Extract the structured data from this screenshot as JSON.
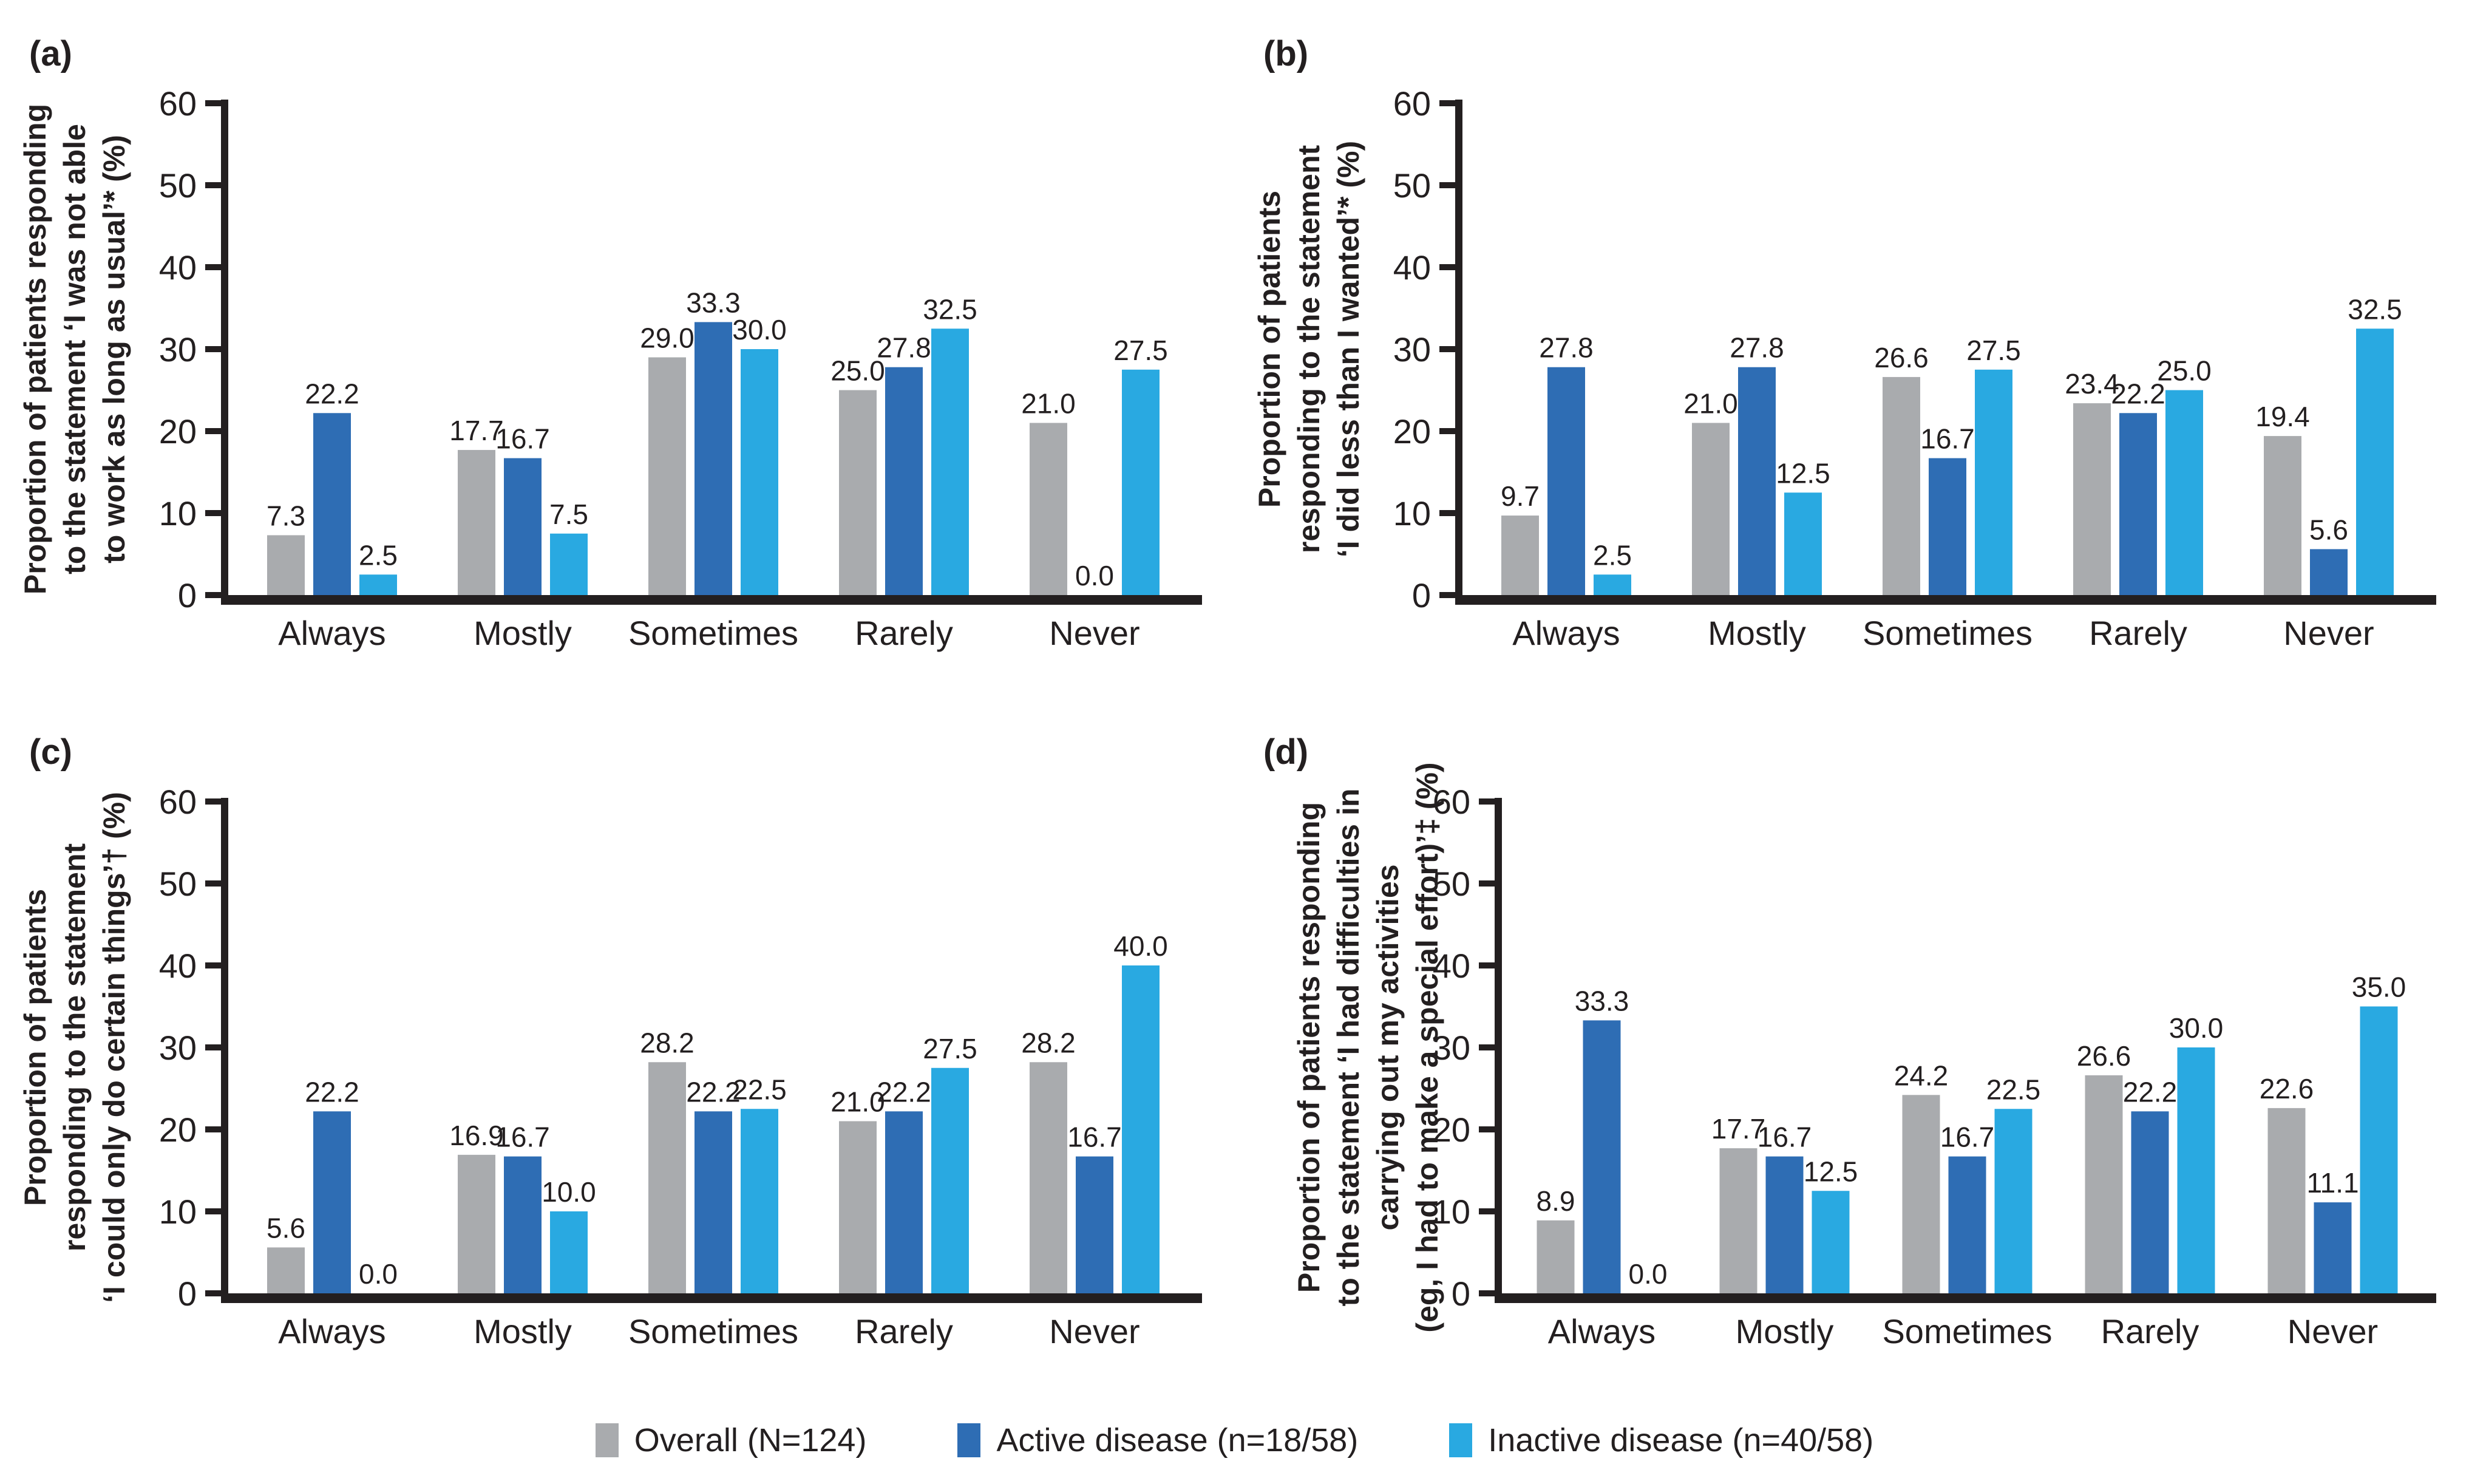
{
  "colors": {
    "ink": "#231f20",
    "background": "#ffffff"
  },
  "legend": [
    {
      "label": "Overall (N=124)",
      "color": "#a9abae"
    },
    {
      "label": "Active disease (n=18/58)",
      "color": "#2e6db4"
    },
    {
      "label": "Inactive disease (n=40/58)",
      "color": "#29a9e1"
    }
  ],
  "chart_data": [
    {
      "type": "bar",
      "panel_label": "(a)",
      "ylabel": "Proportion of patients responding to the statement ‘I was not able to work as long as usual’* (%)",
      "ylabel_lines": [
        "Proportion of patients responding",
        "to the statement ‘I was not able",
        "to work as long as usual’* (%)"
      ],
      "categories": [
        "Always",
        "Mostly",
        "Sometimes",
        "Rarely",
        "Never"
      ],
      "series": [
        {
          "name": "Overall (N=124)",
          "values": [
            7.3,
            17.7,
            29.0,
            25.0,
            21.0
          ]
        },
        {
          "name": "Active disease (n=18/58)",
          "values": [
            22.2,
            16.7,
            33.3,
            27.8,
            0.0
          ]
        },
        {
          "name": "Inactive disease (n=40/58)",
          "values": [
            2.5,
            7.5,
            30.0,
            32.5,
            27.5
          ]
        }
      ],
      "ylim": [
        0,
        60
      ],
      "yticks": [
        0,
        10,
        20,
        30,
        40,
        50,
        60
      ],
      "grid": false,
      "legend_position": "shared-bottom"
    },
    {
      "type": "bar",
      "panel_label": "(b)",
      "ylabel": "Proportion of patients responding to the statement ‘I did less than I wanted’* (%)",
      "ylabel_lines": [
        "Proportion of patients",
        "responding to the statement",
        "‘I did less than I wanted’* (%)"
      ],
      "categories": [
        "Always",
        "Mostly",
        "Sometimes",
        "Rarely",
        "Never"
      ],
      "series": [
        {
          "name": "Overall (N=124)",
          "values": [
            9.7,
            21.0,
            26.6,
            23.4,
            19.4
          ]
        },
        {
          "name": "Active disease (n=18/58)",
          "values": [
            27.8,
            27.8,
            16.7,
            22.2,
            5.6
          ]
        },
        {
          "name": "Inactive disease (n=40/58)",
          "values": [
            2.5,
            12.5,
            27.5,
            25.0,
            32.5
          ]
        }
      ],
      "ylim": [
        0,
        60
      ],
      "yticks": [
        0,
        10,
        20,
        30,
        40,
        50,
        60
      ],
      "grid": false,
      "legend_position": "shared-bottom"
    },
    {
      "type": "bar",
      "panel_label": "(c)",
      "ylabel": "Proportion of patients responding to the statement ‘I could only do certain things’† (%)",
      "ylabel_lines": [
        "Proportion of patients",
        "responding to the statement",
        "‘I could only do certain things’† (%)"
      ],
      "categories": [
        "Always",
        "Mostly",
        "Sometimes",
        "Rarely",
        "Never"
      ],
      "series": [
        {
          "name": "Overall (N=124)",
          "values": [
            5.6,
            16.9,
            28.2,
            21.0,
            28.2
          ]
        },
        {
          "name": "Active disease (n=18/58)",
          "values": [
            22.2,
            16.7,
            22.2,
            22.2,
            16.7
          ]
        },
        {
          "name": "Inactive disease (n=40/58)",
          "values": [
            0.0,
            10.0,
            22.5,
            27.5,
            40.0
          ]
        }
      ],
      "ylim": [
        0,
        60
      ],
      "yticks": [
        0,
        10,
        20,
        30,
        40,
        50,
        60
      ],
      "grid": false,
      "legend_position": "shared-bottom"
    },
    {
      "type": "bar",
      "panel_label": "(d)",
      "ylabel": "Proportion of patients responding to the statement ‘I had difficulties in carrying out my activities (eg, I had to make a special effort)’‡ (%)",
      "ylabel_lines": [
        "Proportion of patients responding",
        "to the statement ‘I had difficulties in",
        "carrying out my activities",
        "(eg, I had to make a special effort)’‡ (%)"
      ],
      "categories": [
        "Always",
        "Mostly",
        "Sometimes",
        "Rarely",
        "Never"
      ],
      "series": [
        {
          "name": "Overall (N=124)",
          "values": [
            8.9,
            17.7,
            24.2,
            26.6,
            22.6
          ]
        },
        {
          "name": "Active disease (n=18/58)",
          "values": [
            33.3,
            16.7,
            16.7,
            22.2,
            11.1
          ]
        },
        {
          "name": "Inactive disease (n=40/58)",
          "values": [
            0.0,
            12.5,
            22.5,
            30.0,
            35.0
          ]
        }
      ],
      "ylim": [
        0,
        60
      ],
      "yticks": [
        0,
        10,
        20,
        30,
        40,
        50,
        60
      ],
      "grid": false,
      "legend_position": "shared-bottom"
    }
  ]
}
